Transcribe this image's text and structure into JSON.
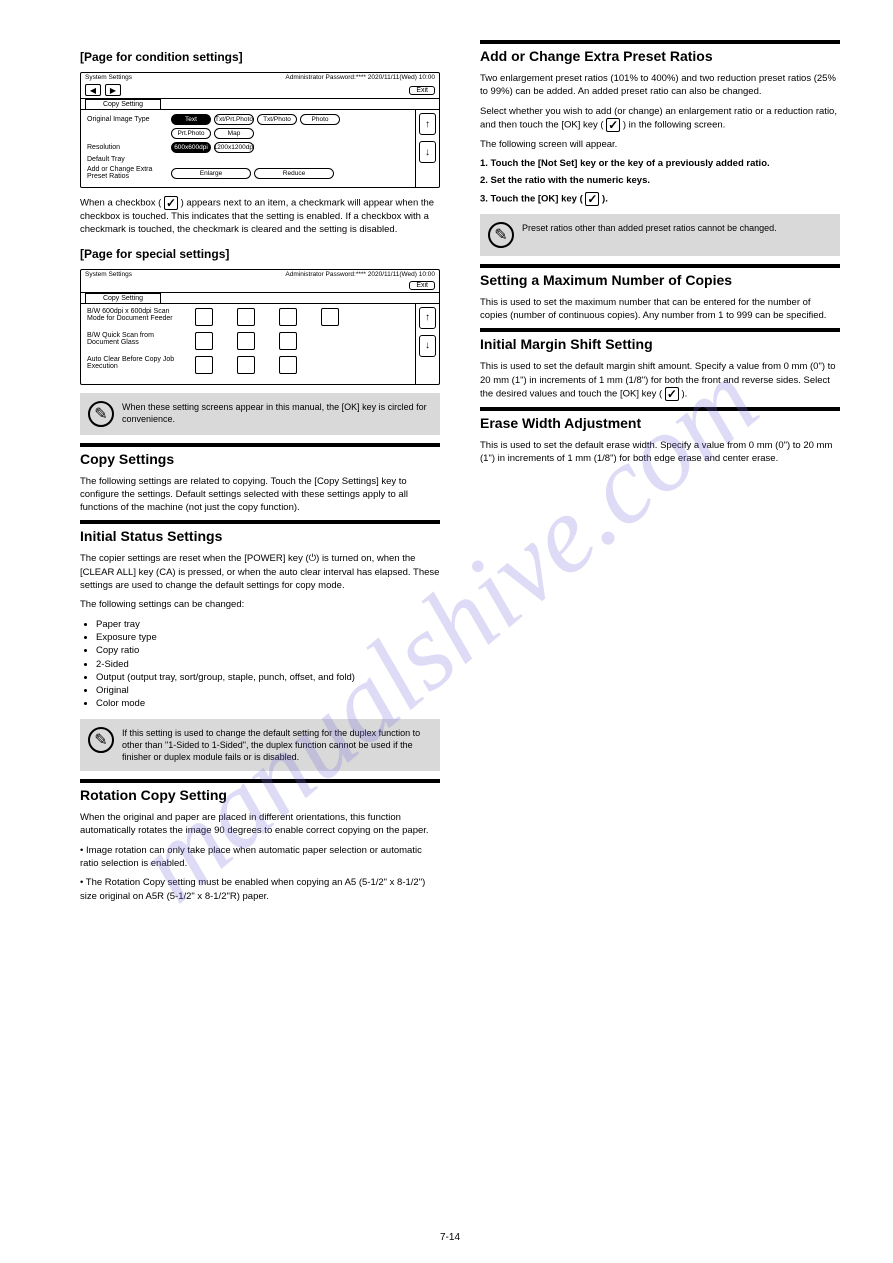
{
  "watermark": "manualshive.com",
  "page_number": "7-14",
  "left": {
    "top_subheading": "[Page for condition settings]",
    "panel1": {
      "top_small_left": "System Settings",
      "top_small_right": "Administrator Password:**** 2020/11/11(Wed) 10:00",
      "exit": "Exit",
      "nav_left": "◀",
      "nav_right": "▶",
      "tab": "Copy Setting",
      "rows": [
        {
          "label": "Original Image Type",
          "cells": [
            {
              "t": "Text",
              "f": true
            },
            {
              "t": "Txt/Prt.Photo"
            },
            {
              "t": "Txt/Photo"
            },
            {
              "t": "Photo"
            }
          ]
        },
        {
          "label": "",
          "cells": [
            {
              "t": "Prt.Photo"
            },
            {
              "t": "Map"
            }
          ]
        },
        {
          "label": "Resolution",
          "cells": [
            {
              "t": "600x600dpi",
              "f": true
            },
            {
              "t": "1200x1200dpi"
            }
          ]
        },
        {
          "label": "Default Tray",
          "cells": []
        },
        {
          "label": "Add or Change Extra Preset Ratios",
          "cells": [
            {
              "t": "Enlarge",
              "w": 80
            },
            {
              "t": "Reduce",
              "w": 80
            }
          ]
        }
      ],
      "side": [
        "↑",
        "↓"
      ]
    },
    "panel1_after": "When a checkbox (",
    "panel1_after2": ") appears next to an item, a checkmark will appear when the checkbox is touched. This indicates that the setting is enabled. If a checkbox with a checkmark is touched, the checkmark is cleared and the setting is disabled.",
    "special_heading": "[Page for special settings]",
    "panel2": {
      "top_small_left": "System Settings",
      "top_small_right": "Administrator Password:**** 2020/11/11(Wed) 10:00",
      "exit": "Exit",
      "tab": "Copy Setting",
      "grid_rows": [
        {
          "label": "B/W 600dpi x 600dpi Scan Mode for Document Feeder",
          "cols": 4
        },
        {
          "label": "B/W Quick Scan from Document Glass",
          "cols": 3
        },
        {
          "label": "Auto Clear Before Copy Job Execution",
          "cols": 3
        }
      ],
      "side": [
        "↑",
        "↓"
      ]
    },
    "note1": "When these setting screens appear in this manual, the [OK] key is circled for convenience.",
    "copy_heading": "Copy Settings",
    "copy_body": "The following settings are related to copying. Touch the [Copy Settings] key to configure the settings. Default settings selected with these settings apply to all functions of the machine (not just the copy function).",
    "initial_heading": "Initial Status Settings",
    "initial_body1": "The copier settings are reset when the [POWER] key (",
    "initial_body1b": ") is turned on, when the [CLEAR ALL] key (",
    "initial_body1c": ") is pressed, or when the auto clear interval has elapsed. These settings are used to change the default settings for copy mode.",
    "initial_body2": "The following settings can be changed:",
    "initial_list": [
      "Paper tray",
      "Exposure type",
      "Copy ratio",
      "2-Sided",
      "Output (output tray, sort/group, staple, punch, offset, and fold)",
      "Original",
      "Color mode"
    ],
    "note2": "If this setting is used to change the default setting for the duplex function to other than \"1-Sided to 1-Sided\", the duplex function cannot be used if the finisher or duplex module fails or is disabled.",
    "rotation_heading": "Rotation Copy Setting",
    "rotation_body": "When the original and paper are placed in different orientations, this function automatically rotates the image 90 degrees to enable correct copying on the paper.",
    "rotation_note1": "• Image rotation can only take place when automatic paper selection or automatic ratio selection is enabled.",
    "rotation_note2": "• The Rotation Copy setting must be enabled when copying an A5 (5-1/2\" x 8-1/2\") size original on A5R (5-1/2\" x 8-1/2\"R) paper."
  },
  "right": {
    "preset_heading": "Add or Change Extra Preset Ratios",
    "preset_body1": "Two enlargement preset ratios (101% to 400%) and two reduction preset ratios (25% to 99%) can be added. An added preset ratio can also be changed.",
    "preset_body2": "Select whether you wish to add (or change) an enlargement ratio or a reduction ratio, and then touch the [OK] key (",
    "preset_body2b": ") in the following screen.",
    "preset_steps_intro": "The following screen will appear.",
    "step1": "1. Touch the [Not Set] key or the key of a previously added ratio.",
    "step2": "2. Set the ratio with the numeric keys.",
    "step3": "3. Touch the [OK] key (",
    "step3b": ").",
    "preset_note": "Preset ratios other than added preset ratios cannot be changed.",
    "maxcopies_heading": "Setting a Maximum Number of Copies",
    "maxcopies_body": "This is used to set the maximum number that can be entered for the number of copies (number of continuous copies). Any number from 1 to 999 can be specified.",
    "margin_heading": "Initial Margin Shift Setting",
    "margin_body1": "This is used to set the default margin shift amount. Specify a value from 0 mm (0\") to 20 mm (1\") in increments of 1 mm (1/8\") for both the front and reverse sides. Select the desired values and touch the [OK] key (",
    "margin_body1b": ").",
    "erase_heading": "Erase Width Adjustment",
    "erase_body": "This is used to set the default erase width. Specify a value from 0 mm (0\") to 20 mm (1\") in increments of 1 mm (1/8\") for both edge erase and center erase."
  }
}
